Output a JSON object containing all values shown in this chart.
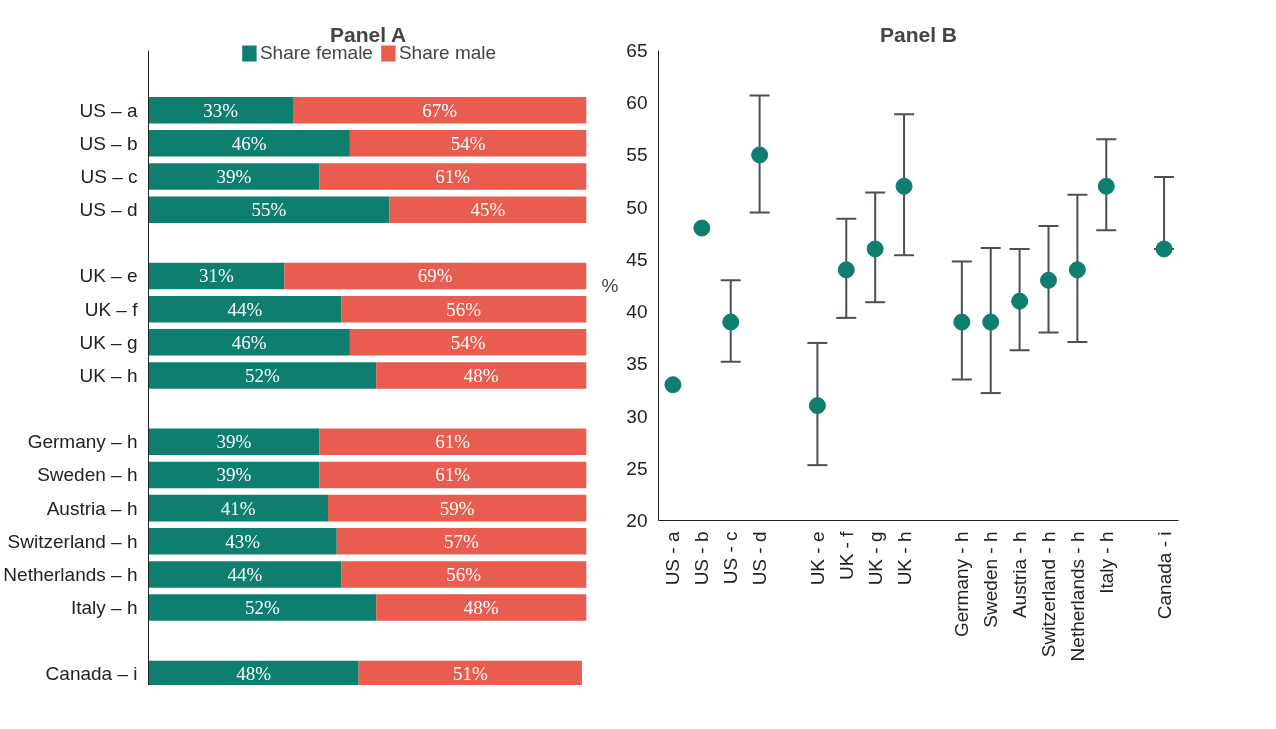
{
  "chart_data": [
    {
      "type": "bar",
      "title": "Panel A",
      "orientation": "horizontal",
      "stacked": true,
      "legend": "top",
      "categories": [
        "US – a",
        "US – b",
        "US – c",
        "US – d",
        null,
        "UK – e",
        "UK – f",
        "UK – g",
        "UK – h",
        null,
        "Germany – h",
        "Sweden – h",
        "Austria – h",
        "Switzerland – h",
        "Netherlands – h",
        "Italy – h",
        null,
        "Canada – i"
      ],
      "series": [
        {
          "name": "Share female",
          "color": "#0e7e6e",
          "values": [
            33,
            46,
            39,
            55,
            null,
            31,
            44,
            46,
            52,
            null,
            39,
            39,
            41,
            43,
            44,
            52,
            null,
            48
          ],
          "value_labels": [
            "33%",
            "46%",
            "39%",
            "55%",
            null,
            "31%",
            "44%",
            "46%",
            "52%",
            null,
            "39%",
            "39%",
            "41%",
            "43%",
            "44%",
            "52%",
            null,
            "48%"
          ]
        },
        {
          "name": "Share male",
          "color": "#e85d50",
          "values": [
            67,
            54,
            61,
            45,
            null,
            69,
            56,
            54,
            48,
            null,
            61,
            61,
            59,
            57,
            56,
            48,
            null,
            51
          ],
          "value_labels": [
            "67%",
            "54%",
            "61%",
            "45%",
            null,
            "69%",
            "56%",
            "54%",
            "48%",
            null,
            "61%",
            "61%",
            "59%",
            "57%",
            "56%",
            "48%",
            null,
            "51%"
          ]
        }
      ]
    },
    {
      "type": "scatter",
      "title": "Panel B",
      "ylabel": "%",
      "marker": "circle",
      "grid": false,
      "categories": [
        "US - a",
        "US - b",
        "US - c",
        "US - d",
        null,
        "UK - e",
        "UK - f",
        "UK - g",
        "UK - h",
        null,
        "Germany - h",
        "Sweden - h",
        "Austria - h",
        "Switzerland - h",
        "Netherlands - h",
        "Italy - h",
        null,
        "Canada - i"
      ],
      "ylim": [
        20,
        65
      ],
      "yticks": [
        20,
        25,
        30,
        35,
        40,
        45,
        50,
        55,
        60,
        65
      ],
      "series": [
        {
          "color": "#0e7e6e",
          "values": [
            33,
            48,
            39,
            55,
            null,
            31,
            44,
            46,
            52,
            null,
            39,
            39,
            41,
            43,
            44,
            52,
            null,
            46
          ],
          "errors": [
            null,
            null,
            [
              35.2,
              43
            ],
            [
              49.5,
              60.7
            ],
            null,
            [
              25.3,
              37
            ],
            [
              39.4,
              48.9
            ],
            [
              40.9,
              51.4
            ],
            [
              45.4,
              58.9
            ],
            null,
            [
              33.5,
              44.8
            ],
            [
              32.2,
              46.1
            ],
            [
              36.3,
              46
            ],
            [
              38,
              48.2
            ],
            [
              37.1,
              51.2
            ],
            [
              47.8,
              56.5
            ],
            null,
            [
              46,
              52.9
            ]
          ]
        }
      ]
    }
  ]
}
